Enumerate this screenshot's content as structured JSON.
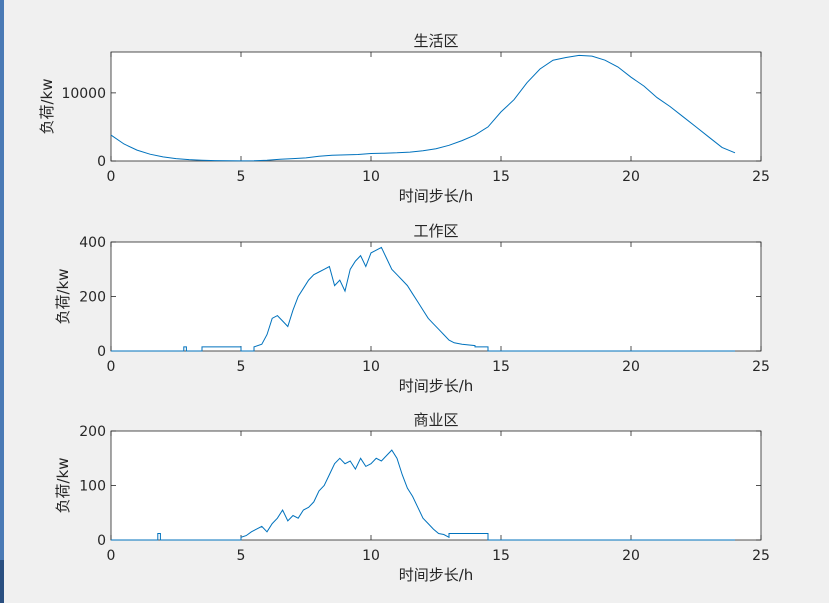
{
  "window": {
    "accent": "#4a7ab5",
    "background": "#f0f0f0"
  },
  "chart_data": [
    {
      "type": "line",
      "title": "生活区",
      "xlabel": "时间步长/h",
      "ylabel": "负荷/kw",
      "xlim": [
        0,
        25
      ],
      "ylim": [
        0,
        16000
      ],
      "xticks": [
        0,
        5,
        10,
        15,
        20,
        25
      ],
      "yticks": [
        0,
        10000
      ],
      "grid": false,
      "color": "#0072bd",
      "series": [
        {
          "x": [
            0,
            0.5,
            1,
            1.5,
            2,
            2.5,
            3,
            3.5,
            4,
            4.5,
            5,
            5.5,
            6,
            6.5,
            7,
            7.5,
            8,
            8.5,
            9,
            9.5,
            10,
            10.5,
            11,
            11.5,
            12,
            12.5,
            13,
            13.5,
            14,
            14.5,
            15,
            15.5,
            16,
            16.5,
            17,
            17.5,
            18,
            18.5,
            19,
            19.5,
            20,
            20.5,
            21,
            21.5,
            22,
            22.5,
            23,
            23.5,
            24
          ],
          "y": [
            3800,
            2500,
            1600,
            1000,
            600,
            350,
            200,
            120,
            60,
            30,
            20,
            50,
            120,
            250,
            350,
            450,
            700,
            850,
            900,
            950,
            1100,
            1150,
            1200,
            1300,
            1500,
            1800,
            2300,
            3000,
            3800,
            5000,
            7200,
            9000,
            11500,
            13500,
            14800,
            15200,
            15500,
            15400,
            14800,
            13800,
            12300,
            11000,
            9300,
            8000,
            6500,
            5000,
            3500,
            2000,
            1200
          ]
        }
      ]
    },
    {
      "type": "line",
      "title": "工作区",
      "xlabel": "时间步长/h",
      "ylabel": "负荷/kw",
      "xlim": [
        0,
        25
      ],
      "ylim": [
        0,
        400
      ],
      "xticks": [
        0,
        5,
        10,
        15,
        20,
        25
      ],
      "yticks": [
        0,
        200,
        400
      ],
      "grid": false,
      "color": "#0072bd",
      "series": [
        {
          "x": [
            0,
            2.8,
            2.8,
            2.9,
            2.9,
            3.5,
            3.5,
            5.0,
            5.0,
            5.5,
            5.5,
            5.8,
            6.0,
            6.2,
            6.4,
            6.6,
            6.8,
            7.0,
            7.2,
            7.4,
            7.6,
            7.8,
            8.0,
            8.2,
            8.4,
            8.6,
            8.8,
            9.0,
            9.2,
            9.4,
            9.6,
            9.8,
            10.0,
            10.2,
            10.4,
            10.6,
            10.8,
            11.0,
            11.2,
            11.4,
            11.6,
            11.8,
            12.0,
            12.2,
            12.4,
            12.6,
            12.8,
            13.0,
            13.2,
            13.5,
            14.0,
            14.0,
            14.5,
            14.5,
            24
          ],
          "y": [
            0,
            0,
            15,
            15,
            0,
            0,
            15,
            15,
            0,
            0,
            15,
            25,
            60,
            120,
            130,
            110,
            90,
            150,
            200,
            230,
            260,
            280,
            290,
            300,
            310,
            240,
            260,
            220,
            300,
            330,
            350,
            310,
            360,
            370,
            380,
            340,
            300,
            280,
            260,
            240,
            210,
            180,
            150,
            120,
            100,
            80,
            60,
            40,
            30,
            25,
            20,
            15,
            15,
            0,
            0
          ]
        }
      ]
    },
    {
      "type": "line",
      "title": "商业区",
      "xlabel": "时间步长/h",
      "ylabel": "负荷/kw",
      "xlim": [
        0,
        25
      ],
      "ylim": [
        0,
        200
      ],
      "xticks": [
        0,
        5,
        10,
        15,
        20,
        25
      ],
      "yticks": [
        0,
        100,
        200
      ],
      "grid": false,
      "color": "#0072bd",
      "series": [
        {
          "x": [
            0,
            1.8,
            1.8,
            1.9,
            1.9,
            5.0,
            5.0,
            5.2,
            5.4,
            5.6,
            5.8,
            6.0,
            6.2,
            6.4,
            6.6,
            6.8,
            7.0,
            7.2,
            7.4,
            7.6,
            7.8,
            8.0,
            8.2,
            8.4,
            8.6,
            8.8,
            9.0,
            9.2,
            9.4,
            9.6,
            9.8,
            10.0,
            10.2,
            10.4,
            10.6,
            10.8,
            11.0,
            11.2,
            11.4,
            11.6,
            11.8,
            12.0,
            12.2,
            12.4,
            12.6,
            12.8,
            13.0,
            13.0,
            14.5,
            14.5,
            24
          ],
          "y": [
            0,
            0,
            12,
            12,
            0,
            0,
            5,
            8,
            15,
            20,
            25,
            15,
            30,
            40,
            55,
            35,
            45,
            40,
            55,
            60,
            70,
            90,
            100,
            120,
            140,
            150,
            140,
            145,
            130,
            150,
            135,
            140,
            150,
            145,
            155,
            165,
            150,
            120,
            95,
            80,
            60,
            40,
            30,
            20,
            12,
            10,
            5,
            12,
            12,
            0,
            0
          ]
        }
      ]
    }
  ]
}
